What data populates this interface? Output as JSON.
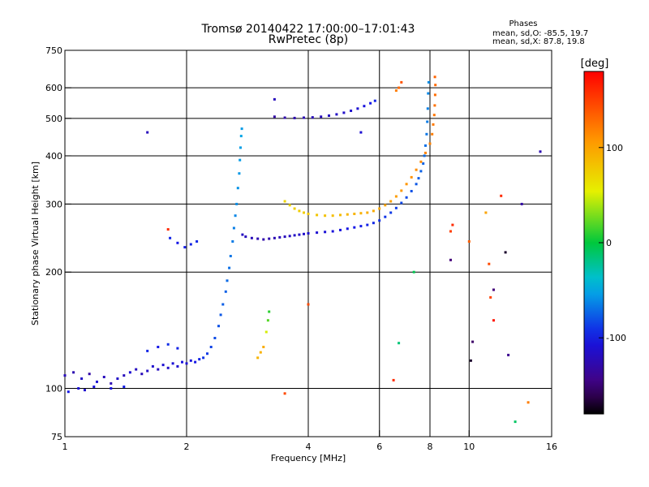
{
  "chart_data": {
    "type": "scatter",
    "title": "Tromsø 20140422 17:00:00–17:01:43",
    "subtitle": "RwPretec (8p)",
    "phase_info": {
      "title": "Phases",
      "line_o": "mean, sd,O: -85.5, 19.7",
      "line_x": "mean, sd,X:  87.8, 19.8"
    },
    "xlabel": "Frequency [MHz]",
    "ylabel": "Stationary phase Virtual Height [km]",
    "xscale": "log",
    "yscale": "log",
    "xlim": [
      1,
      16
    ],
    "ylim": [
      75,
      750
    ],
    "xticks": [
      1,
      2,
      4,
      6,
      8,
      10,
      16
    ],
    "xtick_labels": [
      "1",
      "2",
      "4",
      "6",
      "8",
      "10",
      "16"
    ],
    "yticks": [
      75,
      100,
      200,
      300,
      400,
      500,
      600,
      750
    ],
    "ytick_labels": [
      "75",
      "100",
      "200",
      "300",
      "400",
      "500",
      "600",
      "750"
    ],
    "grid": true,
    "colorbar": {
      "label": "[deg]",
      "range": [
        -180,
        180
      ],
      "ticks": [
        100,
        0,
        -100
      ],
      "tick_labels": [
        "100",
        "0",
        "-100"
      ]
    },
    "series": [
      {
        "points": [
          [
            1.0,
            108,
            -120
          ],
          [
            1.05,
            110,
            -125
          ],
          [
            1.1,
            106,
            -115
          ],
          [
            1.15,
            109,
            -130
          ],
          [
            1.2,
            104,
            -110
          ],
          [
            1.25,
            107,
            -120
          ],
          [
            1.3,
            103,
            -125
          ],
          [
            1.35,
            106,
            -115
          ],
          [
            1.4,
            108,
            -120
          ],
          [
            1.45,
            110,
            -110
          ],
          [
            1.5,
            112,
            -118
          ],
          [
            1.55,
            109,
            -122
          ],
          [
            1.6,
            111,
            -115
          ],
          [
            1.65,
            114,
            -112
          ],
          [
            1.7,
            112,
            -118
          ],
          [
            1.75,
            115,
            -110
          ],
          [
            1.8,
            113,
            -115
          ],
          [
            1.85,
            116,
            -108
          ],
          [
            1.9,
            114,
            -112
          ],
          [
            1.95,
            117,
            -105
          ],
          [
            2.0,
            116,
            -110
          ],
          [
            2.05,
            118,
            -105
          ],
          [
            2.1,
            117,
            -100
          ],
          [
            2.15,
            119,
            -95
          ],
          [
            2.2,
            120,
            -90
          ],
          [
            2.25,
            123,
            -88
          ],
          [
            2.3,
            128,
            -85
          ],
          [
            2.35,
            135,
            -82
          ],
          [
            2.4,
            145,
            -80
          ],
          [
            2.43,
            155,
            -78
          ],
          [
            2.46,
            165,
            -76
          ],
          [
            2.5,
            178,
            -75
          ],
          [
            2.52,
            190,
            -72
          ],
          [
            2.55,
            205,
            -70
          ],
          [
            2.57,
            220,
            -68
          ],
          [
            2.6,
            240,
            -66
          ],
          [
            2.62,
            260,
            -65
          ],
          [
            2.64,
            280,
            -62
          ],
          [
            2.66,
            300,
            -60
          ],
          [
            2.68,
            330,
            -58
          ],
          [
            2.7,
            360,
            -56
          ],
          [
            2.71,
            390,
            -55
          ],
          [
            2.72,
            420,
            -54
          ],
          [
            2.73,
            450,
            -52
          ],
          [
            2.74,
            470,
            -55
          ],
          [
            1.02,
            98,
            -100
          ],
          [
            1.08,
            100,
            -108
          ],
          [
            1.12,
            99,
            -112
          ],
          [
            1.18,
            101,
            -106
          ],
          [
            1.3,
            100,
            -104
          ],
          [
            1.4,
            101,
            -98
          ],
          [
            1.6,
            125,
            -95
          ],
          [
            1.7,
            128,
            -100
          ],
          [
            1.8,
            130,
            -92
          ],
          [
            1.9,
            127,
            -96
          ]
        ]
      },
      {
        "points": [
          [
            2.75,
            250,
            -118
          ],
          [
            2.8,
            247,
            -120
          ],
          [
            2.9,
            245,
            -122
          ],
          [
            3.0,
            244,
            -125
          ],
          [
            3.1,
            243,
            -128
          ],
          [
            3.2,
            244,
            -126
          ],
          [
            3.3,
            245,
            -124
          ],
          [
            3.4,
            246,
            -122
          ],
          [
            3.5,
            247,
            -120
          ],
          [
            3.6,
            248,
            -118
          ],
          [
            3.7,
            249,
            -116
          ],
          [
            3.8,
            250,
            -115
          ],
          [
            3.9,
            251,
            -114
          ],
          [
            4.0,
            252,
            -112
          ],
          [
            4.2,
            253,
            -110
          ],
          [
            4.4,
            254,
            -108
          ],
          [
            4.6,
            255,
            -106
          ],
          [
            4.8,
            257,
            -104
          ],
          [
            5.0,
            259,
            -102
          ],
          [
            5.2,
            261,
            -100
          ],
          [
            5.4,
            263,
            -98
          ],
          [
            5.6,
            265,
            -96
          ],
          [
            5.8,
            268,
            -94
          ],
          [
            6.0,
            272,
            -92
          ],
          [
            6.2,
            278,
            -90
          ],
          [
            6.4,
            285,
            -88
          ],
          [
            6.6,
            293,
            -86
          ],
          [
            6.8,
            302,
            -84
          ],
          [
            7.0,
            312,
            -82
          ],
          [
            7.2,
            324,
            -80
          ],
          [
            7.4,
            338,
            -78
          ],
          [
            7.5,
            350,
            -76
          ],
          [
            7.6,
            365,
            -75
          ],
          [
            7.7,
            382,
            -74
          ],
          [
            7.75,
            400,
            -72
          ],
          [
            7.8,
            425,
            -70
          ],
          [
            7.85,
            455,
            -68
          ],
          [
            7.88,
            490,
            -66
          ],
          [
            7.9,
            530,
            -64
          ],
          [
            7.92,
            580,
            -62
          ],
          [
            7.94,
            620,
            -60
          ],
          [
            3.3,
            505,
            -130
          ],
          [
            3.5,
            502,
            -128
          ],
          [
            3.7,
            501,
            -126
          ],
          [
            3.9,
            502,
            -124
          ],
          [
            4.1,
            503,
            -122
          ],
          [
            4.3,
            505,
            -120
          ],
          [
            4.5,
            508,
            -118
          ],
          [
            4.7,
            512,
            -116
          ],
          [
            4.9,
            517,
            -114
          ],
          [
            5.1,
            523,
            -112
          ],
          [
            5.3,
            530,
            -110
          ],
          [
            5.5,
            538,
            -105
          ],
          [
            5.7,
            547,
            -100
          ],
          [
            5.85,
            555,
            -96
          ],
          [
            1.82,
            245,
            -95
          ],
          [
            1.9,
            238,
            -100
          ],
          [
            1.98,
            232,
            -98
          ],
          [
            2.05,
            236,
            -96
          ],
          [
            2.12,
            240,
            -94
          ]
        ]
      },
      {
        "points": [
          [
            3.5,
            305,
            70
          ],
          [
            3.6,
            298,
            72
          ],
          [
            3.7,
            292,
            74
          ],
          [
            3.8,
            288,
            75
          ],
          [
            3.9,
            285,
            76
          ],
          [
            4.0,
            283,
            78
          ],
          [
            4.2,
            281,
            80
          ],
          [
            4.4,
            280,
            82
          ],
          [
            4.6,
            280,
            84
          ],
          [
            4.8,
            281,
            86
          ],
          [
            5.0,
            282,
            88
          ],
          [
            5.2,
            283,
            90
          ],
          [
            5.4,
            284,
            92
          ],
          [
            5.6,
            285,
            94
          ],
          [
            5.8,
            288,
            96
          ],
          [
            6.0,
            292,
            98
          ],
          [
            6.2,
            298,
            100
          ],
          [
            6.4,
            305,
            102
          ],
          [
            6.6,
            314,
            104
          ],
          [
            6.8,
            325,
            106
          ],
          [
            7.0,
            338,
            108
          ],
          [
            7.2,
            352,
            110
          ],
          [
            7.4,
            368,
            112
          ],
          [
            7.6,
            386,
            114
          ],
          [
            7.8,
            407,
            116
          ],
          [
            8.0,
            430,
            118
          ],
          [
            8.1,
            455,
            120
          ],
          [
            8.15,
            482,
            122
          ],
          [
            8.2,
            510,
            124
          ],
          [
            8.22,
            540,
            126
          ],
          [
            8.24,
            575,
            128
          ],
          [
            8.25,
            610,
            130
          ],
          [
            8.23,
            640,
            132
          ]
        ]
      },
      {
        "points": [
          [
            3.0,
            120,
            90
          ],
          [
            3.05,
            124,
            92
          ],
          [
            3.1,
            128,
            95
          ],
          [
            3.15,
            140,
            50
          ],
          [
            3.18,
            150,
            20
          ],
          [
            3.2,
            158,
            10
          ],
          [
            6.6,
            590,
            120
          ],
          [
            6.7,
            600,
            130
          ],
          [
            6.8,
            620,
            140
          ],
          [
            9.0,
            255,
            150
          ],
          [
            9.1,
            265,
            160
          ],
          [
            10.0,
            240,
            135
          ],
          [
            11.2,
            210,
            145
          ],
          [
            11.5,
            180,
            -150
          ],
          [
            11.3,
            172,
            150
          ],
          [
            12.5,
            122,
            -140
          ],
          [
            13.5,
            300,
            -130
          ],
          [
            14.0,
            92,
            120
          ],
          [
            15.0,
            410,
            -125
          ],
          [
            12.0,
            315,
            160
          ],
          [
            11.0,
            285,
            100
          ],
          [
            1.6,
            460,
            -120
          ],
          [
            1.8,
            258,
            160
          ],
          [
            5.4,
            460,
            -110
          ],
          [
            4.0,
            165,
            145
          ],
          [
            6.5,
            105,
            160
          ],
          [
            7.3,
            200,
            -5
          ],
          [
            6.7,
            131,
            -15
          ],
          [
            9.0,
            215,
            -150
          ],
          [
            10.2,
            132,
            -155
          ],
          [
            10.1,
            118,
            -170
          ],
          [
            12.3,
            225,
            -170
          ],
          [
            11.5,
            150,
            170
          ],
          [
            13.0,
            82,
            -10
          ],
          [
            3.5,
            97,
            145
          ],
          [
            3.3,
            560,
            -120
          ]
        ]
      }
    ]
  }
}
